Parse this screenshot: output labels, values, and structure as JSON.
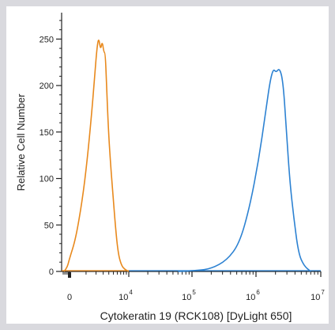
{
  "chart_data": {
    "type": "line",
    "title": "",
    "xlabel": "Cytokeratin 19 (RCK108) [DyLight 650]",
    "ylabel": "Relative Cell Number",
    "x_scale": "biexponential",
    "xlim": [
      -500,
      10000000
    ],
    "ylim": [
      0,
      275
    ],
    "y_ticks": [
      0,
      50,
      100,
      150,
      200,
      250
    ],
    "x_ticks": [
      {
        "value": 0,
        "base": "0",
        "exp": ""
      },
      {
        "value": 10000,
        "base": "10",
        "exp": "4"
      },
      {
        "value": 100000,
        "base": "10",
        "exp": "5"
      },
      {
        "value": 1000000,
        "base": "10",
        "exp": "6"
      },
      {
        "value": 10000000,
        "base": "10",
        "exp": "7"
      }
    ],
    "grid": false,
    "series": [
      {
        "color": "#e8891d",
        "x": [
          -350,
          -250,
          -120,
          0,
          300,
          700,
          1100,
          1500,
          1800,
          2100,
          2350,
          2600,
          2850,
          3100,
          3350,
          3600,
          3900,
          4300,
          4800,
          5500,
          6300,
          7300,
          8500,
          10000
        ],
        "y": [
          0,
          2,
          6,
          14,
          35,
          75,
          120,
          168,
          205,
          240,
          252,
          238,
          248,
          236,
          235,
          195,
          155,
          120,
          88,
          48,
          18,
          6,
          2,
          0
        ]
      },
      {
        "color": "#2d82d2",
        "x": [
          60000,
          120000,
          200000,
          350000,
          550000,
          800000,
          1100000,
          1400000,
          1650000,
          1850000,
          2050000,
          2300000,
          2600000,
          2900000,
          3300000,
          3800000,
          4500000,
          5500000,
          7000000
        ],
        "y": [
          0,
          1,
          3,
          12,
          30,
          70,
          120,
          170,
          205,
          218,
          214,
          219,
          206,
          160,
          100,
          60,
          20,
          6,
          0
        ]
      }
    ]
  }
}
